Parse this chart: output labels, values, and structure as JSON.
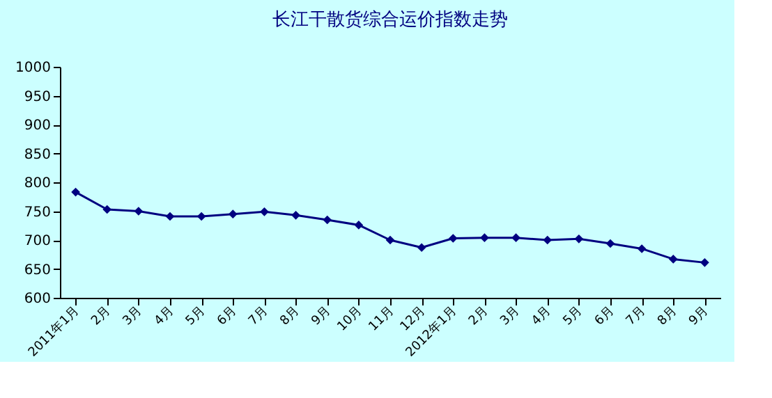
{
  "chart_data": {
    "type": "line",
    "title": "长江干散货综合运价指数走势",
    "categories": [
      "2011年1月",
      "2月",
      "3月",
      "4月",
      "5月",
      "6月",
      "7月",
      "8月",
      "9月",
      "10月",
      "11月",
      "12月",
      "2012年1月",
      "2月",
      "3月",
      "4月",
      "5月",
      "6月",
      "7月",
      "8月",
      "9月"
    ],
    "series": [
      {
        "color": "#000080",
        "values": [
          783,
          753,
          750,
          741,
          741,
          745,
          749,
          743,
          735,
          726,
          700,
          687,
          703,
          704,
          704,
          700,
          702,
          694,
          685,
          667,
          661
        ]
      }
    ],
    "ylim": [
      600,
      1000
    ],
    "yticks": [
      600,
      650,
      700,
      750,
      800,
      850,
      900,
      950,
      1000
    ],
    "grid": false,
    "marker": "diamond",
    "line_style": "solid"
  }
}
